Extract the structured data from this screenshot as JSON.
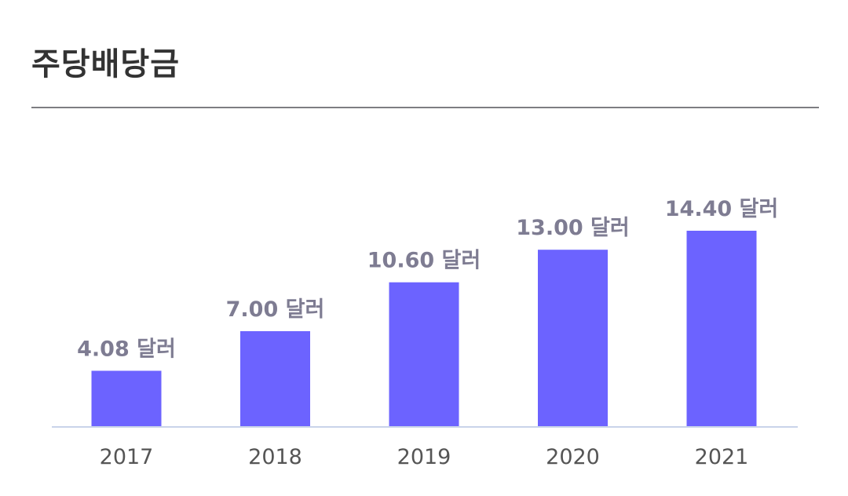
{
  "chart_data": {
    "type": "bar",
    "title": "주당배당금",
    "categories": [
      "2017",
      "2018",
      "2019",
      "2020",
      "2021"
    ],
    "values": [
      4.08,
      7.0,
      10.6,
      13.0,
      14.4
    ],
    "data_labels": [
      "4.08 달러",
      "7.00 달러",
      "10.60 달러",
      "13.00 달러",
      "14.40 달러"
    ],
    "xlabel": "",
    "ylabel": "",
    "ylim": [
      0,
      15
    ],
    "grid": false,
    "legend": "none",
    "bar_color": "#6c63ff",
    "axis_color": "#c9d3ea",
    "label_color": "#7e7c92"
  }
}
